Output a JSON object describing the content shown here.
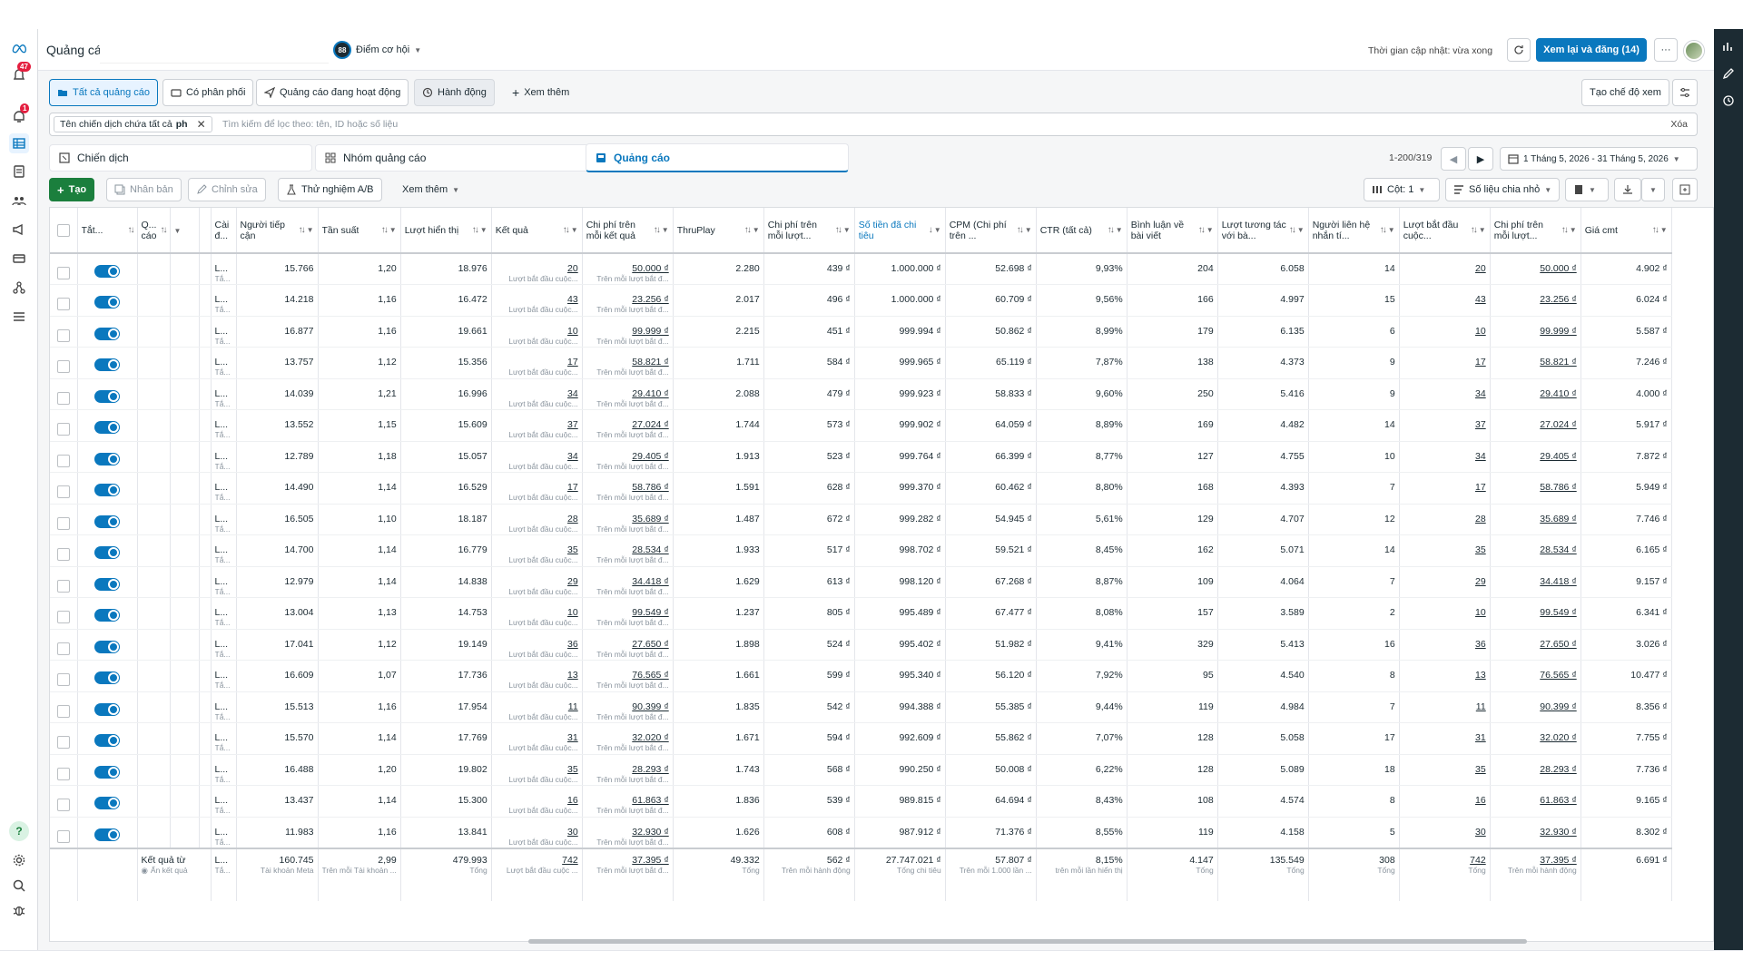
{
  "header": {
    "title": "Quảng cáo",
    "opportunity_score": "88",
    "opportunity_label": "Điểm cơ hội",
    "update_time": "Thời gian cập nhật: vừa xong",
    "publish_button": "Xem lại và đăng (14)",
    "more": "···"
  },
  "nav": {
    "notif_badge": "47",
    "alert_badge": "1"
  },
  "filters": {
    "tabs": [
      "Tất cả quảng cáo",
      "Có phân phối",
      "Quảng cáo đang hoạt động",
      "Hành động",
      "Xem thêm"
    ],
    "view_mode": "Tạo chế độ xem"
  },
  "search": {
    "chip": "Tên chiến dịch chứa tất cả",
    "chip_value": "ph",
    "placeholder": "Tìm kiếm để lọc theo: tên, ID hoặc số liệu",
    "clear": "Xóa"
  },
  "levels": {
    "campaign": "Chiến dịch",
    "adset": "Nhóm quảng cáo",
    "ad": "Quảng cáo",
    "pagination": "1-200/319",
    "date_range": "1 Tháng 5, 2026 - 31 Tháng 5, 2026"
  },
  "toolbar": {
    "create": "Tạo",
    "duplicate": "Nhân bản",
    "edit": "Chỉnh sửa",
    "ab_test": "Thử nghiệm A/B",
    "more": "Xem thêm",
    "columns": "Cột: 1",
    "breakdown": "Số liệu chia nhỏ"
  },
  "table": {
    "headers": [
      "Tắt...",
      "Q... cáo",
      "Cài đ...",
      "Người tiếp cận",
      "Tần suất",
      "Lượt hiển thị",
      "Kết quả",
      "Chi phí trên mỗi kết quả",
      "ThruPlay",
      "Chi phí trên mỗi lượt...",
      "Số tiền đã chi tiêu",
      "CPM (Chi phí trên ...",
      "CTR (tất cả)",
      "Bình luận về bài viết",
      "Lượt tương tác với bà...",
      "Người liên hệ nhắn tí...",
      "Lượt bắt đầu cuộc...",
      "Chi phí trên mỗi lượt...",
      "Giá cmt"
    ],
    "setting_text": "L...",
    "setting_sub": "Tắ...",
    "result_sub": "Lượt bắt đầu cuộc...",
    "cpr_sub": "Trên mỗi lượt bắt đ...",
    "rows": [
      [
        "15.766",
        "1,20",
        "18.976",
        "20",
        "50.000 ₫",
        "2.280",
        "439 ₫",
        "1.000.000 ₫",
        "52.698 ₫",
        "9,93%",
        "204",
        "6.058",
        "14",
        "20",
        "50.000 ₫",
        "4.902 ₫"
      ],
      [
        "14.218",
        "1,16",
        "16.472",
        "43",
        "23.256 ₫",
        "2.017",
        "496 ₫",
        "1.000.000 ₫",
        "60.709 ₫",
        "9,56%",
        "166",
        "4.997",
        "15",
        "43",
        "23.256 ₫",
        "6.024 ₫"
      ],
      [
        "16.877",
        "1,16",
        "19.661",
        "10",
        "99.999 ₫",
        "2.215",
        "451 ₫",
        "999.994 ₫",
        "50.862 ₫",
        "8,99%",
        "179",
        "6.135",
        "6",
        "10",
        "99.999 ₫",
        "5.587 ₫"
      ],
      [
        "13.757",
        "1,12",
        "15.356",
        "17",
        "58.821 ₫",
        "1.711",
        "584 ₫",
        "999.965 ₫",
        "65.119 ₫",
        "7,87%",
        "138",
        "4.373",
        "9",
        "17",
        "58.821 ₫",
        "7.246 ₫"
      ],
      [
        "14.039",
        "1,21",
        "16.996",
        "34",
        "29.410 ₫",
        "2.088",
        "479 ₫",
        "999.923 ₫",
        "58.833 ₫",
        "9,60%",
        "250",
        "5.416",
        "9",
        "34",
        "29.410 ₫",
        "4.000 ₫"
      ],
      [
        "13.552",
        "1,15",
        "15.609",
        "37",
        "27.024 ₫",
        "1.744",
        "573 ₫",
        "999.902 ₫",
        "64.059 ₫",
        "8,89%",
        "169",
        "4.482",
        "14",
        "37",
        "27.024 ₫",
        "5.917 ₫"
      ],
      [
        "12.789",
        "1,18",
        "15.057",
        "34",
        "29.405 ₫",
        "1.913",
        "523 ₫",
        "999.764 ₫",
        "66.399 ₫",
        "8,77%",
        "127",
        "4.755",
        "10",
        "34",
        "29.405 ₫",
        "7.872 ₫"
      ],
      [
        "14.490",
        "1,14",
        "16.529",
        "17",
        "58.786 ₫",
        "1.591",
        "628 ₫",
        "999.370 ₫",
        "60.462 ₫",
        "8,80%",
        "168",
        "4.393",
        "7",
        "17",
        "58.786 ₫",
        "5.949 ₫"
      ],
      [
        "16.505",
        "1,10",
        "18.187",
        "28",
        "35.689 ₫",
        "1.487",
        "672 ₫",
        "999.282 ₫",
        "54.945 ₫",
        "5,61%",
        "129",
        "4.707",
        "12",
        "28",
        "35.689 ₫",
        "7.746 ₫"
      ],
      [
        "14.700",
        "1,14",
        "16.779",
        "35",
        "28.534 ₫",
        "1.933",
        "517 ₫",
        "998.702 ₫",
        "59.521 ₫",
        "8,45%",
        "162",
        "5.071",
        "14",
        "35",
        "28.534 ₫",
        "6.165 ₫"
      ],
      [
        "12.979",
        "1,14",
        "14.838",
        "29",
        "34.418 ₫",
        "1.629",
        "613 ₫",
        "998.120 ₫",
        "67.268 ₫",
        "8,87%",
        "109",
        "4.064",
        "7",
        "29",
        "34.418 ₫",
        "9.157 ₫"
      ],
      [
        "13.004",
        "1,13",
        "14.753",
        "10",
        "99.549 ₫",
        "1.237",
        "805 ₫",
        "995.489 ₫",
        "67.477 ₫",
        "8,08%",
        "157",
        "3.589",
        "2",
        "10",
        "99.549 ₫",
        "6.341 ₫"
      ],
      [
        "17.041",
        "1,12",
        "19.149",
        "36",
        "27.650 ₫",
        "1.898",
        "524 ₫",
        "995.402 ₫",
        "51.982 ₫",
        "9,41%",
        "329",
        "5.413",
        "16",
        "36",
        "27.650 ₫",
        "3.026 ₫"
      ],
      [
        "16.609",
        "1,07",
        "17.736",
        "13",
        "76.565 ₫",
        "1.661",
        "599 ₫",
        "995.340 ₫",
        "56.120 ₫",
        "7,92%",
        "95",
        "4.540",
        "8",
        "13",
        "76.565 ₫",
        "10.477 ₫"
      ],
      [
        "15.513",
        "1,16",
        "17.954",
        "11",
        "90.399 ₫",
        "1.835",
        "542 ₫",
        "994.388 ₫",
        "55.385 ₫",
        "9,44%",
        "119",
        "4.984",
        "7",
        "11",
        "90.399 ₫",
        "8.356 ₫"
      ],
      [
        "15.570",
        "1,14",
        "17.769",
        "31",
        "32.020 ₫",
        "1.671",
        "594 ₫",
        "992.609 ₫",
        "55.862 ₫",
        "7,07%",
        "128",
        "5.058",
        "17",
        "31",
        "32.020 ₫",
        "7.755 ₫"
      ],
      [
        "16.488",
        "1,20",
        "19.802",
        "35",
        "28.293 ₫",
        "1.743",
        "568 ₫",
        "990.250 ₫",
        "50.008 ₫",
        "6,22%",
        "128",
        "5.089",
        "18",
        "35",
        "28.293 ₫",
        "7.736 ₫"
      ],
      [
        "13.437",
        "1,14",
        "15.300",
        "16",
        "61.863 ₫",
        "1.836",
        "539 ₫",
        "989.815 ₫",
        "64.694 ₫",
        "8,43%",
        "108",
        "4.574",
        "8",
        "16",
        "61.863 ₫",
        "9.165 ₫"
      ],
      [
        "11.983",
        "1,16",
        "13.841",
        "30",
        "32.930 ₫",
        "1.626",
        "608 ₫",
        "987.912 ₫",
        "71.376 ₫",
        "8,55%",
        "119",
        "4.158",
        "5",
        "30",
        "32.930 ₫",
        "8.302 ₫"
      ]
    ],
    "total": {
      "label": "Kết quả từ",
      "label2": "Ẩn kết quả",
      "setting": "L...",
      "setting_sub": "Tắ...",
      "values": [
        "160.745",
        "2,99",
        "479.993",
        "742",
        "37.395 ₫",
        "49.332",
        "562 ₫",
        "27.747.021 ₫",
        "57.807 ₫",
        "8,15%",
        "4.147",
        "135.549",
        "308",
        "742",
        "37.395 ₫",
        "6.691 ₫"
      ],
      "subs": [
        "Tài khoản Meta",
        "Trên mỗi Tài khoản ...",
        "Tổng",
        "Lượt bắt đầu cuộc ...",
        "Trên mỗi lượt bắt đ...",
        "Tổng",
        "Trên mỗi hành động",
        "Tổng chi tiêu",
        "Trên mỗi 1.000 lần ...",
        "trên mỗi lần hiển thị",
        "Tổng",
        "Tổng",
        "Tổng",
        "Tổng",
        "Trên mỗi hành động",
        ""
      ]
    }
  },
  "colors": {
    "accent": "#0a78be",
    "badge": "#e41e3f",
    "rail": "#1c2b33"
  }
}
